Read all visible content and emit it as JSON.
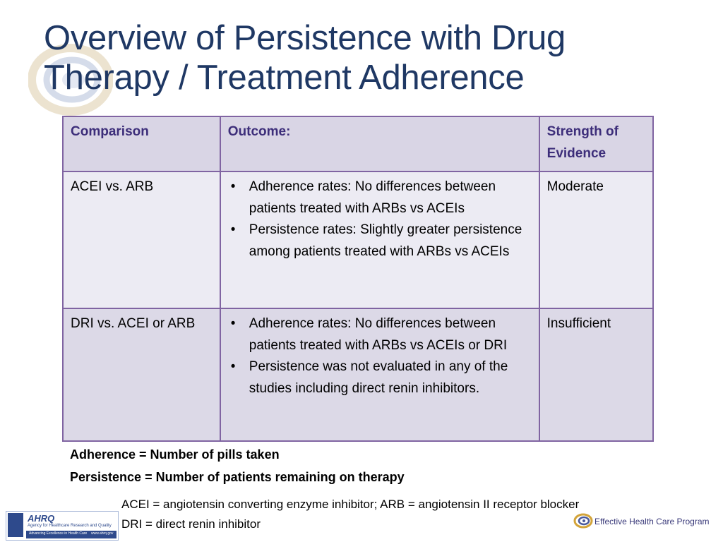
{
  "slide": {
    "title_line1": "Overview of Persistence with Drug",
    "title_line2": "Therapy / Treatment Adherence"
  },
  "table": {
    "headers": [
      "Comparison",
      "Outcome:",
      "Strength of Evidence"
    ],
    "rows": [
      {
        "comparison": "ACEI vs. ARB",
        "outcomes": [
          "Adherence rates: No differences between patients treated with ARBs vs ACEIs",
          "Persistence rates: Slightly greater persistence among patients treated with ARBs vs ACEIs"
        ],
        "strength": "Moderate"
      },
      {
        "comparison": "DRI vs. ACEI or ARB",
        "outcomes": [
          "Adherence rates: No differences between patients treated with ARBs vs ACEIs or DRI",
          "Persistence was not evaluated in any of the studies including direct renin inhibitors."
        ],
        "strength": "Insufficient"
      }
    ]
  },
  "definitions": {
    "adherence": "Adherence = Number of pills taken",
    "persistence": "Persistence = Number of patients remaining on therapy"
  },
  "abbreviations": {
    "line1": "ACEI = angiotensin converting enzyme inhibitor; ARB = angiotensin II receptor blocker",
    "line2": "DRI = direct renin inhibitor"
  },
  "footer": {
    "ahrq_name": "AHRQ",
    "ahrq_subtitle": "Agency for Healthcare Research and Quality",
    "ahrq_tagline": "Advancing Excellence in Health Care",
    "ahrq_url": "www.ahrq.gov",
    "program_name": "Effective Health Care Program"
  },
  "colors": {
    "title": "#1f3864",
    "table_border": "#8064a2",
    "header_bg": "#d9d5e5",
    "header_text": "#3d2e7a",
    "row_light": "#ecebf3",
    "row_dark": "#dcd9e7"
  }
}
